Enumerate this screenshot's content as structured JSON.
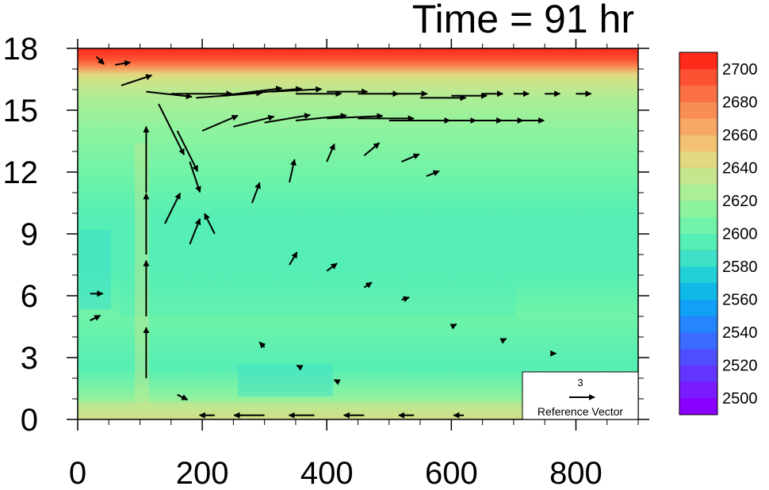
{
  "chart_data": {
    "type": "contour-vector",
    "title": "Time = 91 hr",
    "x_ticks": [
      "0",
      "200",
      "400",
      "600",
      "800"
    ],
    "x_values": [
      0,
      200,
      400,
      600,
      800
    ],
    "xlim": [
      0,
      900
    ],
    "y_ticks": [
      "0",
      "3",
      "6",
      "9",
      "12",
      "15",
      "18"
    ],
    "y_values": [
      0,
      3,
      6,
      9,
      12,
      15,
      18
    ],
    "ylim": [
      0,
      18
    ],
    "colorbar": {
      "ticks": [
        "2500",
        "2520",
        "2540",
        "2560",
        "2580",
        "2600",
        "2620",
        "2640",
        "2660",
        "2680",
        "2700"
      ],
      "levels": [
        2490,
        2500,
        2510,
        2520,
        2530,
        2540,
        2550,
        2560,
        2570,
        2580,
        2590,
        2600,
        2610,
        2620,
        2630,
        2640,
        2650,
        2660,
        2670,
        2680,
        2690,
        2700,
        2710
      ],
      "colors": [
        "#8a00ff",
        "#7a1aff",
        "#6434ff",
        "#4f4fff",
        "#3a6aff",
        "#2585ff",
        "#10a0f5",
        "#11b9e8",
        "#22d0d8",
        "#3ee0c8",
        "#55eeb5",
        "#70f3a8",
        "#8ef39f",
        "#aaee96",
        "#c6e68d",
        "#e2d880",
        "#f2c272",
        "#f7a865",
        "#f98e55",
        "#fb7045",
        "#fc5233",
        "#fe2a1a"
      ]
    },
    "reference_vector": {
      "value": "3",
      "label": "Reference Vector"
    },
    "grid": false,
    "wind_arrows": [
      [
        70,
        16.2,
        1.2,
        0.4
      ],
      [
        110,
        15.9,
        1.8,
        -0.2
      ],
      [
        150,
        15.8,
        2.4,
        0
      ],
      [
        190,
        15.6,
        2.6,
        0.2
      ],
      [
        230,
        15.7,
        2.4,
        0.3
      ],
      [
        270,
        15.8,
        2.2,
        0.2
      ],
      [
        310,
        15.9,
        2.0,
        0.1
      ],
      [
        350,
        15.8,
        1.8,
        0
      ],
      [
        400,
        15.9,
        1.6,
        0
      ],
      [
        450,
        15.8,
        1.6,
        0
      ],
      [
        500,
        15.8,
        1.5,
        0
      ],
      [
        550,
        15.6,
        1.8,
        0
      ],
      [
        600,
        15.7,
        1.4,
        0
      ],
      [
        650,
        15.8,
        0.8,
        0
      ],
      [
        700,
        15.8,
        0.6,
        0
      ],
      [
        750,
        15.8,
        0.6,
        0
      ],
      [
        800,
        15.8,
        0.6,
        0
      ],
      [
        200,
        14.0,
        1.4,
        0.6
      ],
      [
        250,
        14.2,
        1.6,
        0.4
      ],
      [
        300,
        14.4,
        1.8,
        0.3
      ],
      [
        350,
        14.5,
        2.0,
        0.2
      ],
      [
        400,
        14.6,
        2.2,
        0.1
      ],
      [
        450,
        14.6,
        2.2,
        0
      ],
      [
        500,
        14.5,
        2.4,
        0
      ],
      [
        550,
        14.5,
        2.2,
        0
      ],
      [
        600,
        14.5,
        2.0,
        0
      ],
      [
        650,
        14.5,
        1.6,
        0
      ],
      [
        700,
        14.5,
        1.2,
        0
      ],
      [
        110,
        11.0,
        0,
        2.6
      ],
      [
        110,
        8.0,
        0,
        2.4
      ],
      [
        110,
        5.0,
        0,
        2.2
      ],
      [
        110,
        2.0,
        0,
        2.0
      ],
      [
        130,
        15.3,
        1.0,
        -2.0
      ],
      [
        160,
        14.0,
        0.8,
        -1.6
      ],
      [
        180,
        12.5,
        0.4,
        -1.2
      ],
      [
        140,
        9.5,
        0.6,
        1.2
      ],
      [
        180,
        8.5,
        0.4,
        1.0
      ],
      [
        220,
        9.0,
        -0.4,
        0.8
      ],
      [
        160,
        1.2,
        0.4,
        -0.2
      ],
      [
        220,
        0.2,
        -0.6,
        0
      ],
      [
        300,
        0.2,
        -1.2,
        0
      ],
      [
        380,
        0.2,
        -1.0,
        0
      ],
      [
        460,
        0.2,
        -0.8,
        0
      ],
      [
        540,
        0.2,
        -0.6,
        0
      ],
      [
        620,
        0.2,
        -0.4,
        0
      ],
      [
        20,
        6.1,
        0.5,
        0
      ],
      [
        20,
        4.8,
        0.4,
        0.2
      ],
      [
        30,
        17.6,
        0.3,
        -0.3
      ],
      [
        60,
        17.2,
        0.6,
        0.1
      ],
      [
        280,
        10.5,
        0.3,
        0.8
      ],
      [
        340,
        11.5,
        0.2,
        0.9
      ],
      [
        400,
        12.5,
        0.3,
        0.7
      ],
      [
        460,
        12.8,
        0.6,
        0.5
      ],
      [
        520,
        12.5,
        0.7,
        0.3
      ],
      [
        560,
        11.8,
        0.5,
        0.2
      ],
      [
        340,
        7.5,
        0.3,
        0.5
      ],
      [
        400,
        7.2,
        0.4,
        0.3
      ],
      [
        460,
        6.4,
        0.3,
        0.2
      ],
      [
        520,
        5.8,
        0.3,
        0.1
      ],
      [
        600,
        4.5,
        0.2,
        0.1
      ],
      [
        680,
        3.8,
        0.2,
        0.1
      ],
      [
        760,
        3.2,
        0.2,
        0
      ],
      [
        300,
        3.5,
        -0.2,
        0.2
      ],
      [
        360,
        2.5,
        -0.2,
        0.1
      ],
      [
        420,
        1.8,
        -0.2,
        0.1
      ]
    ]
  }
}
